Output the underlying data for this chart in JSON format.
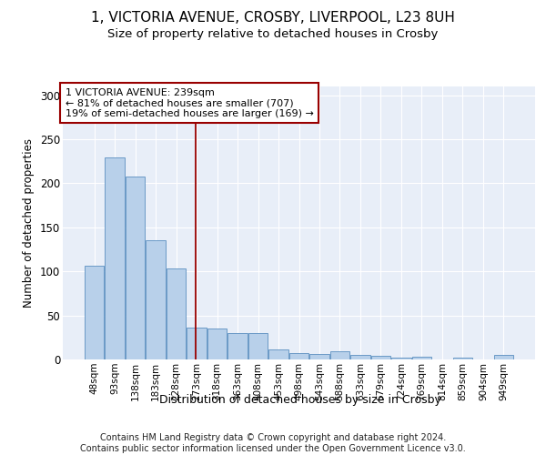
{
  "title_line1": "1, VICTORIA AVENUE, CROSBY, LIVERPOOL, L23 8UH",
  "title_line2": "Size of property relative to detached houses in Crosby",
  "xlabel": "Distribution of detached houses by size in Crosby",
  "ylabel": "Number of detached properties",
  "categories": [
    "48sqm",
    "93sqm",
    "138sqm",
    "183sqm",
    "228sqm",
    "273sqm",
    "318sqm",
    "363sqm",
    "408sqm",
    "453sqm",
    "498sqm",
    "543sqm",
    "588sqm",
    "633sqm",
    "679sqm",
    "724sqm",
    "769sqm",
    "814sqm",
    "859sqm",
    "904sqm",
    "949sqm"
  ],
  "values": [
    106,
    229,
    208,
    135,
    103,
    36,
    35,
    30,
    30,
    11,
    7,
    6,
    9,
    5,
    4,
    2,
    3,
    0,
    2,
    0,
    5
  ],
  "bar_color": "#b8d0ea",
  "bar_edge_color": "#5a8fc0",
  "vline_color": "#990000",
  "vline_x": 4.97,
  "ylim": [
    0,
    310
  ],
  "yticks": [
    0,
    50,
    100,
    150,
    200,
    250,
    300
  ],
  "bg_color": "#e8eef8",
  "annotation_title": "1 VICTORIA AVENUE: 239sqm",
  "annotation_line1": "← 81% of detached houses are smaller (707)",
  "annotation_line2": "19% of semi-detached houses are larger (169) →",
  "footer": "Contains HM Land Registry data © Crown copyright and database right 2024.\nContains public sector information licensed under the Open Government Licence v3.0."
}
